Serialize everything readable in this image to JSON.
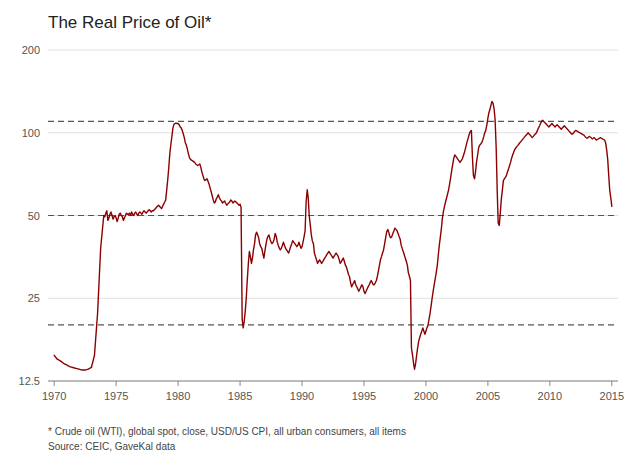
{
  "chart_data": {
    "type": "line",
    "title": "The Real Price of Oil*",
    "footnotes": [
      "* Crude oil (WTI), global spot, close, USD/US CPI, all urban consumers, all items",
      "Source: CEIC, GaveKal data"
    ],
    "log": "y",
    "grid": true,
    "xlim": [
      1969.5,
      2015.5
    ],
    "xticks": [
      1970,
      1975,
      1980,
      1985,
      1990,
      1995,
      2000,
      2005,
      2010,
      2015
    ],
    "ylim": [
      12.5,
      200
    ],
    "yticks": [
      12.5,
      25,
      50,
      100,
      200
    ],
    "reference_lines": [
      20,
      50,
      110
    ],
    "x": [
      1970.0,
      1970.25,
      1970.5,
      1970.75,
      1971.0,
      1971.25,
      1971.5,
      1971.75,
      1972.0,
      1972.25,
      1972.5,
      1972.75,
      1973.0,
      1973.25,
      1973.5,
      1973.75,
      1974.0,
      1974.08,
      1974.17,
      1974.25,
      1974.33,
      1974.42,
      1974.5,
      1974.58,
      1974.67,
      1974.75,
      1974.83,
      1974.92,
      1975.0,
      1975.08,
      1975.17,
      1975.25,
      1975.33,
      1975.42,
      1975.5,
      1975.58,
      1975.67,
      1975.75,
      1975.83,
      1975.92,
      1976.0,
      1976.08,
      1976.17,
      1976.25,
      1976.33,
      1976.42,
      1976.5,
      1976.58,
      1976.67,
      1976.75,
      1976.83,
      1976.92,
      1977.0,
      1977.08,
      1977.17,
      1977.25,
      1977.33,
      1977.42,
      1977.5,
      1977.58,
      1977.67,
      1977.75,
      1977.83,
      1977.92,
      1978.0,
      1978.08,
      1978.17,
      1978.25,
      1978.33,
      1978.42,
      1978.5,
      1978.58,
      1978.67,
      1978.75,
      1978.83,
      1978.92,
      1979.0,
      1979.08,
      1979.17,
      1979.25,
      1979.33,
      1979.42,
      1979.5,
      1979.58,
      1979.67,
      1979.75,
      1979.83,
      1979.92,
      1980.0,
      1980.08,
      1980.17,
      1980.25,
      1980.33,
      1980.42,
      1980.5,
      1980.58,
      1980.67,
      1980.75,
      1980.83,
      1980.92,
      1981.0,
      1981.08,
      1981.17,
      1981.25,
      1981.33,
      1981.42,
      1981.5,
      1981.58,
      1981.67,
      1981.75,
      1981.83,
      1981.92,
      1982.0,
      1982.08,
      1982.17,
      1982.25,
      1982.33,
      1982.42,
      1982.5,
      1982.58,
      1982.67,
      1982.75,
      1982.83,
      1982.92,
      1983.0,
      1983.08,
      1983.17,
      1983.25,
      1983.33,
      1983.42,
      1983.5,
      1983.58,
      1983.67,
      1983.75,
      1983.83,
      1983.92,
      1984.0,
      1984.08,
      1984.17,
      1984.25,
      1984.33,
      1984.42,
      1984.5,
      1984.58,
      1984.67,
      1984.75,
      1984.83,
      1984.92,
      1985.0,
      1985.08,
      1985.17,
      1985.25,
      1985.33,
      1985.42,
      1985.5,
      1985.58,
      1985.67,
      1985.75,
      1985.83,
      1985.92,
      1986.0,
      1986.08,
      1986.17,
      1986.25,
      1986.33,
      1986.42,
      1986.5,
      1986.58,
      1986.67,
      1986.75,
      1986.83,
      1986.92,
      1987.0,
      1987.08,
      1987.17,
      1987.25,
      1987.33,
      1987.42,
      1987.5,
      1987.58,
      1987.67,
      1987.75,
      1987.83,
      1987.92,
      1988.0,
      1988.08,
      1988.17,
      1988.25,
      1988.33,
      1988.42,
      1988.5,
      1988.58,
      1988.67,
      1988.75,
      1988.83,
      1988.92,
      1989.0,
      1989.08,
      1989.17,
      1989.25,
      1989.33,
      1989.42,
      1989.5,
      1989.58,
      1989.67,
      1989.75,
      1989.83,
      1989.92,
      1990.0,
      1990.08,
      1990.17,
      1990.25,
      1990.33,
      1990.42,
      1990.5,
      1990.58,
      1990.67,
      1990.75,
      1990.83,
      1990.92,
      1991.0,
      1991.08,
      1991.17,
      1991.25,
      1991.33,
      1991.42,
      1991.5,
      1991.58,
      1991.67,
      1991.75,
      1991.83,
      1991.92,
      1992.0,
      1992.08,
      1992.17,
      1992.25,
      1992.33,
      1992.42,
      1992.5,
      1992.58,
      1992.67,
      1992.75,
      1992.83,
      1992.92,
      1993.0,
      1993.08,
      1993.17,
      1993.25,
      1993.33,
      1993.42,
      1993.5,
      1993.58,
      1993.67,
      1993.75,
      1993.83,
      1993.92,
      1994.0,
      1994.08,
      1994.17,
      1994.25,
      1994.33,
      1994.42,
      1994.5,
      1994.58,
      1994.67,
      1994.75,
      1994.83,
      1994.92,
      1995.0,
      1995.08,
      1995.17,
      1995.25,
      1995.33,
      1995.42,
      1995.5,
      1995.58,
      1995.67,
      1995.75,
      1995.83,
      1995.92,
      1996.0,
      1996.08,
      1996.17,
      1996.25,
      1996.33,
      1996.42,
      1996.5,
      1996.58,
      1996.67,
      1996.75,
      1996.83,
      1996.92,
      1997.0,
      1997.08,
      1997.17,
      1997.25,
      1997.33,
      1997.42,
      1997.5,
      1997.58,
      1997.67,
      1997.75,
      1997.83,
      1997.92,
      1998.0,
      1998.08,
      1998.17,
      1998.25,
      1998.33,
      1998.42,
      1998.5,
      1998.58,
      1998.67,
      1998.75,
      1998.83,
      1998.92,
      1999.0,
      1999.08,
      1999.17,
      1999.25,
      1999.33,
      1999.42,
      1999.5,
      1999.58,
      1999.67,
      1999.75,
      1999.83,
      1999.92,
      2000.0,
      2000.08,
      2000.17,
      2000.25,
      2000.33,
      2000.42,
      2000.5,
      2000.58,
      2000.67,
      2000.75,
      2000.83,
      2000.92,
      2001.0,
      2001.08,
      2001.17,
      2001.25,
      2001.33,
      2001.42,
      2001.5,
      2001.58,
      2001.67,
      2001.75,
      2001.83,
      2001.92,
      2002.0,
      2002.08,
      2002.17,
      2002.25,
      2002.33,
      2002.42,
      2002.5,
      2002.58,
      2002.67,
      2002.75,
      2002.83,
      2002.92,
      2003.0,
      2003.08,
      2003.17,
      2003.25,
      2003.33,
      2003.42,
      2003.5,
      2003.58,
      2003.67,
      2003.75,
      2003.83,
      2003.92,
      2004.0,
      2004.08,
      2004.17,
      2004.25,
      2004.33,
      2004.42,
      2004.5,
      2004.58,
      2004.67,
      2004.75,
      2004.83,
      2004.92,
      2005.0,
      2005.08,
      2005.17,
      2005.25,
      2005.33,
      2005.42,
      2005.5,
      2005.58,
      2005.67,
      2005.75,
      2005.83,
      2005.92,
      2006.0,
      2006.08,
      2006.17,
      2006.25,
      2006.33,
      2006.42,
      2006.5,
      2006.58,
      2006.67,
      2006.75,
      2006.83,
      2006.92,
      2007.0,
      2007.08,
      2007.17,
      2007.25,
      2007.33,
      2007.42,
      2007.5,
      2007.58,
      2007.67,
      2007.75,
      2007.83,
      2007.92,
      2008.0,
      2008.08,
      2008.17,
      2008.25,
      2008.33,
      2008.42,
      2008.5,
      2008.58,
      2008.67,
      2008.75,
      2008.83,
      2008.92,
      2009.0,
      2009.08,
      2009.17,
      2009.25,
      2009.33,
      2009.42,
      2009.5,
      2009.58,
      2009.67,
      2009.75,
      2009.83,
      2009.92,
      2010.0,
      2010.08,
      2010.17,
      2010.25,
      2010.33,
      2010.42,
      2010.5,
      2010.58,
      2010.67,
      2010.75,
      2010.83,
      2010.92,
      2011.0,
      2011.08,
      2011.17,
      2011.25,
      2011.33,
      2011.42,
      2011.5,
      2011.58,
      2011.67,
      2011.75,
      2011.83,
      2011.92,
      2012.0,
      2012.08,
      2012.17,
      2012.25,
      2012.33,
      2012.42,
      2012.5,
      2012.58,
      2012.67,
      2012.75,
      2012.83,
      2012.92,
      2013.0,
      2013.08,
      2013.17,
      2013.25,
      2013.33,
      2013.42,
      2013.5,
      2013.58,
      2013.67,
      2013.75,
      2013.83,
      2013.92,
      2014.0,
      2014.08,
      2014.17,
      2014.25,
      2014.33,
      2014.42,
      2014.5,
      2014.58,
      2014.67,
      2014.75,
      2014.83,
      2014.92,
      2015.0
    ],
    "series": [
      {
        "color": "#8B0000",
        "values": [
          15.5,
          15.0,
          14.8,
          14.5,
          14.3,
          14.1,
          14.0,
          13.9,
          13.8,
          13.7,
          13.7,
          13.8,
          14.0,
          15.5,
          22.0,
          38.0,
          50.0,
          49.5,
          51.0,
          52.0,
          48.0,
          49.0,
          50.5,
          51.5,
          50.0,
          48.5,
          49.5,
          50.0,
          49.0,
          47.5,
          49.0,
          50.5,
          51.0,
          50.0,
          49.5,
          48.0,
          49.0,
          50.0,
          51.0,
          50.5,
          50.5,
          51.0,
          50.0,
          51.5,
          50.5,
          50.0,
          51.0,
          51.5,
          50.5,
          50.0,
          51.0,
          51.5,
          51.0,
          50.5,
          51.5,
          52.0,
          51.5,
          51.0,
          51.5,
          52.0,
          52.5,
          52.0,
          51.5,
          52.0,
          52.0,
          52.5,
          53.0,
          53.5,
          54.0,
          54.5,
          54.0,
          53.5,
          53.0,
          54.0,
          55.0,
          56.0,
          57.0,
          62.0,
          68.0,
          75.0,
          84.0,
          91.0,
          97.0,
          104.0,
          107.5,
          108.0,
          108.5,
          108.0,
          108.0,
          107.0,
          105.0,
          104.0,
          102.0,
          99.0,
          96.0,
          92.0,
          90.0,
          87.0,
          84.0,
          81.0,
          80.0,
          79.5,
          79.0,
          78.5,
          78.0,
          77.0,
          76.5,
          76.0,
          76.5,
          77.0,
          75.0,
          72.0,
          70.0,
          68.0,
          67.0,
          67.5,
          68.0,
          66.5,
          65.0,
          63.0,
          61.0,
          59.0,
          57.0,
          55.5,
          56.0,
          57.5,
          58.5,
          59.5,
          58.0,
          57.0,
          56.5,
          55.5,
          56.0,
          56.5,
          55.5,
          54.5,
          55.0,
          55.5,
          56.0,
          57.0,
          56.5,
          55.5,
          56.0,
          56.5,
          56.0,
          55.5,
          55.0,
          54.5,
          55.0,
          53.5,
          21.0,
          19.5,
          20.5,
          22.5,
          25.0,
          29.0,
          33.5,
          37.0,
          35.5,
          33.5,
          35.0,
          37.5,
          39.5,
          42.5,
          43.5,
          42.5,
          41.5,
          39.5,
          38.5,
          38.0,
          36.5,
          35.0,
          37.0,
          39.0,
          41.0,
          42.0,
          42.5,
          41.0,
          40.0,
          39.5,
          40.0,
          41.0,
          43.0,
          42.0,
          40.0,
          39.0,
          38.0,
          37.5,
          38.0,
          39.0,
          40.0,
          39.0,
          38.0,
          37.5,
          37.0,
          36.5,
          37.5,
          38.5,
          39.5,
          40.5,
          40.0,
          39.5,
          39.0,
          38.5,
          39.0,
          40.0,
          39.0,
          38.0,
          38.5,
          40.0,
          42.0,
          44.0,
          56.0,
          62.0,
          58.0,
          50.0,
          46.0,
          42.5,
          40.5,
          39.5,
          36.5,
          35.5,
          34.5,
          33.5,
          34.0,
          34.5,
          34.0,
          33.5,
          34.0,
          34.5,
          35.0,
          35.5,
          36.0,
          36.5,
          37.0,
          36.5,
          36.0,
          35.5,
          35.0,
          35.5,
          36.0,
          36.5,
          36.0,
          35.5,
          34.5,
          33.5,
          34.0,
          34.5,
          35.0,
          34.0,
          33.0,
          32.5,
          31.5,
          30.5,
          30.0,
          28.5,
          27.5,
          28.0,
          28.5,
          29.0,
          28.0,
          27.5,
          27.0,
          26.5,
          27.0,
          27.5,
          28.0,
          27.5,
          26.5,
          26.0,
          26.5,
          27.0,
          27.5,
          28.0,
          28.5,
          29.0,
          28.5,
          28.0,
          28.0,
          28.5,
          29.0,
          30.0,
          31.5,
          33.0,
          34.5,
          35.5,
          36.5,
          37.5,
          39.5,
          41.5,
          43.5,
          44.5,
          43.5,
          42.0,
          41.5,
          42.0,
          43.0,
          44.0,
          45.0,
          44.5,
          44.0,
          43.0,
          42.0,
          41.0,
          39.0,
          38.0,
          37.0,
          36.0,
          35.0,
          34.0,
          33.0,
          31.0,
          30.0,
          29.0,
          16.5,
          15.5,
          14.5,
          13.8,
          14.5,
          15.5,
          16.5,
          17.5,
          18.0,
          18.5,
          19.0,
          19.5,
          19.0,
          18.5,
          19.0,
          19.5,
          20.0,
          21.0,
          22.0,
          23.5,
          25.0,
          26.5,
          28.0,
          29.5,
          31.0,
          33.0,
          36.0,
          39.0,
          42.0,
          45.0,
          49.0,
          52.0,
          54.0,
          56.0,
          58.0,
          60.0,
          62.0,
          65.5,
          69.0,
          73.0,
          77.0,
          81.0,
          83.0,
          82.0,
          81.0,
          80.0,
          79.0,
          78.0,
          79.0,
          80.0,
          82.0,
          84.0,
          87.0,
          90.0,
          93.0,
          96.0,
          99.0,
          101.0,
          102.0,
          82.0,
          70.0,
          68.0,
          72.0,
          78.0,
          83.0,
          88.0,
          90.0,
          91.0,
          92.0,
          94.0,
          97.0,
          100.0,
          102.0,
          107.0,
          113.0,
          118.0,
          122.0,
          126.0,
          130.0,
          128.0,
          122.0,
          112.0,
          88.0,
          62.0,
          47.0,
          46.0,
          51.0,
          57.0,
          62.0,
          67.0,
          68.0,
          69.0,
          70.0,
          72.0,
          74.0,
          76.0,
          78.0,
          81.0,
          83.0,
          85.0,
          87.0,
          88.0,
          89.0,
          90.0,
          91.0,
          92.0,
          93.0,
          94.0,
          95.0,
          96.0,
          97.0,
          98.0,
          99.0,
          100.0,
          99.0,
          98.0,
          97.0,
          96.0,
          97.0,
          98.0,
          99.0,
          100.0,
          102.0,
          104.0,
          106.0,
          108.0,
          110.0,
          111.0,
          110.0,
          109.0,
          108.0,
          107.0,
          106.0,
          105.0,
          106.0,
          107.0,
          108.0,
          107.0,
          106.0,
          105.0,
          106.0,
          107.0,
          106.0,
          105.0,
          104.0,
          103.0,
          104.0,
          105.0,
          106.0,
          105.0,
          104.0,
          103.0,
          102.0,
          101.0,
          100.0,
          99.0,
          99.0,
          100.0,
          101.0,
          102.0,
          101.5,
          101.0,
          100.5,
          100.0,
          99.5,
          99.0,
          98.5,
          98.0,
          97.0,
          96.0,
          95.5,
          96.0,
          97.0,
          96.5,
          96.0,
          95.0,
          95.5,
          96.0,
          95.0,
          94.0,
          94.5,
          95.0,
          95.5,
          96.0,
          95.5,
          95.0,
          94.5,
          94.0,
          92.0,
          87.0,
          80.0,
          70.0,
          62.0,
          58.0,
          54.0
        ]
      }
    ]
  }
}
